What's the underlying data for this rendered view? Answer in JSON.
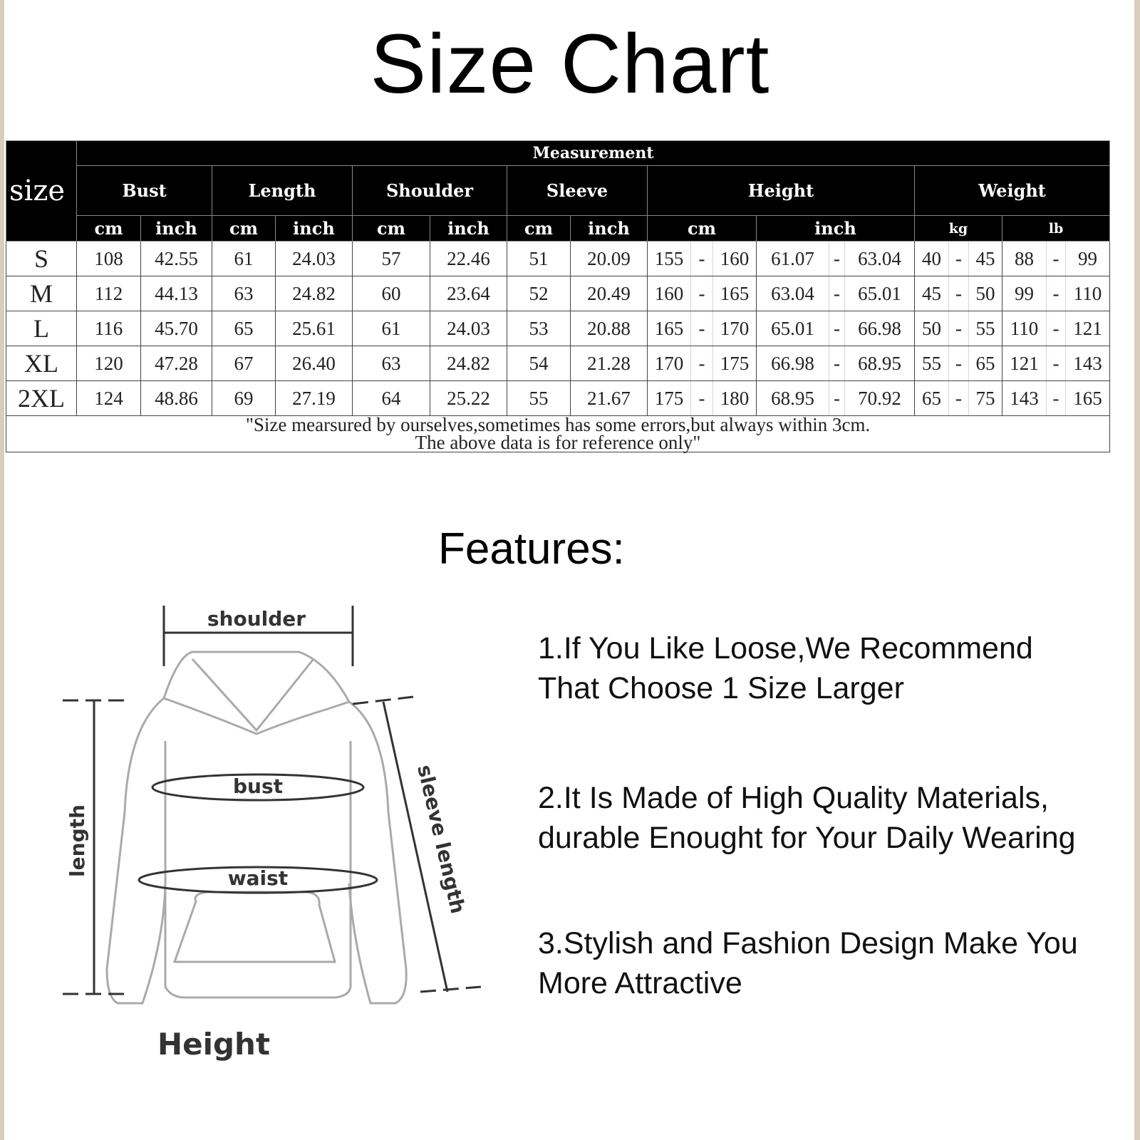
{
  "title": "Size Chart",
  "table": {
    "size_header": "size",
    "measurement_header": "Measurement",
    "groups": [
      "Bust",
      "Length",
      "Shoulder",
      "Sleeve",
      "Height",
      "Weight"
    ],
    "units": [
      "cm",
      "inch",
      "cm",
      "inch",
      "cm",
      "inch",
      "cm",
      "inch",
      "cm",
      "inch",
      "kg",
      "lb"
    ],
    "rows": [
      {
        "size": "S",
        "bust_cm": "108",
        "bust_in": "42.55",
        "len_cm": "61",
        "len_in": "24.03",
        "sh_cm": "57",
        "sh_in": "22.46",
        "sl_cm": "51",
        "sl_in": "20.09",
        "h_cm": [
          "155",
          "160"
        ],
        "h_in": [
          "61.07",
          "63.04"
        ],
        "kg": [
          "40",
          "45"
        ],
        "lb": [
          "88",
          "99"
        ]
      },
      {
        "size": "M",
        "bust_cm": "112",
        "bust_in": "44.13",
        "len_cm": "63",
        "len_in": "24.82",
        "sh_cm": "60",
        "sh_in": "23.64",
        "sl_cm": "52",
        "sl_in": "20.49",
        "h_cm": [
          "160",
          "165"
        ],
        "h_in": [
          "63.04",
          "65.01"
        ],
        "kg": [
          "45",
          "50"
        ],
        "lb": [
          "99",
          "110"
        ]
      },
      {
        "size": "L",
        "bust_cm": "116",
        "bust_in": "45.70",
        "len_cm": "65",
        "len_in": "25.61",
        "sh_cm": "61",
        "sh_in": "24.03",
        "sl_cm": "53",
        "sl_in": "20.88",
        "h_cm": [
          "165",
          "170"
        ],
        "h_in": [
          "65.01",
          "66.98"
        ],
        "kg": [
          "50",
          "55"
        ],
        "lb": [
          "110",
          "121"
        ]
      },
      {
        "size": "XL",
        "bust_cm": "120",
        "bust_in": "47.28",
        "len_cm": "67",
        "len_in": "26.40",
        "sh_cm": "63",
        "sh_in": "24.82",
        "sl_cm": "54",
        "sl_in": "21.28",
        "h_cm": [
          "170",
          "175"
        ],
        "h_in": [
          "66.98",
          "68.95"
        ],
        "kg": [
          "55",
          "65"
        ],
        "lb": [
          "121",
          "143"
        ]
      },
      {
        "size": "2XL",
        "bust_cm": "124",
        "bust_in": "48.86",
        "len_cm": "69",
        "len_in": "27.19",
        "sh_cm": "64",
        "sh_in": "25.22",
        "sl_cm": "55",
        "sl_in": "21.67",
        "h_cm": [
          "175",
          "180"
        ],
        "h_in": [
          "68.95",
          "70.92"
        ],
        "kg": [
          "65",
          "75"
        ],
        "lb": [
          "143",
          "165"
        ]
      }
    ],
    "range_sep": "-",
    "note_line1": "\"Size mearsured by ourselves,sometimes has some errors,but always within 3cm.",
    "note_line2": "The above data is for reference only\""
  },
  "features": {
    "title": "Features:",
    "items": [
      [
        "1.If You Like Loose,We Recommend",
        "That Choose 1 Size Larger"
      ],
      [
        "2.It Is Made of High Quality Materials,",
        "durable Enought for Your Daily Wearing"
      ],
      [
        "3.Stylish and Fashion Design Make You",
        "More Attractive"
      ]
    ]
  },
  "diagram": {
    "shoulder": "shoulder",
    "bust": "bust",
    "waist": "waist",
    "length": "length",
    "sleeve_length": "sleeve length",
    "caption": "Height"
  }
}
